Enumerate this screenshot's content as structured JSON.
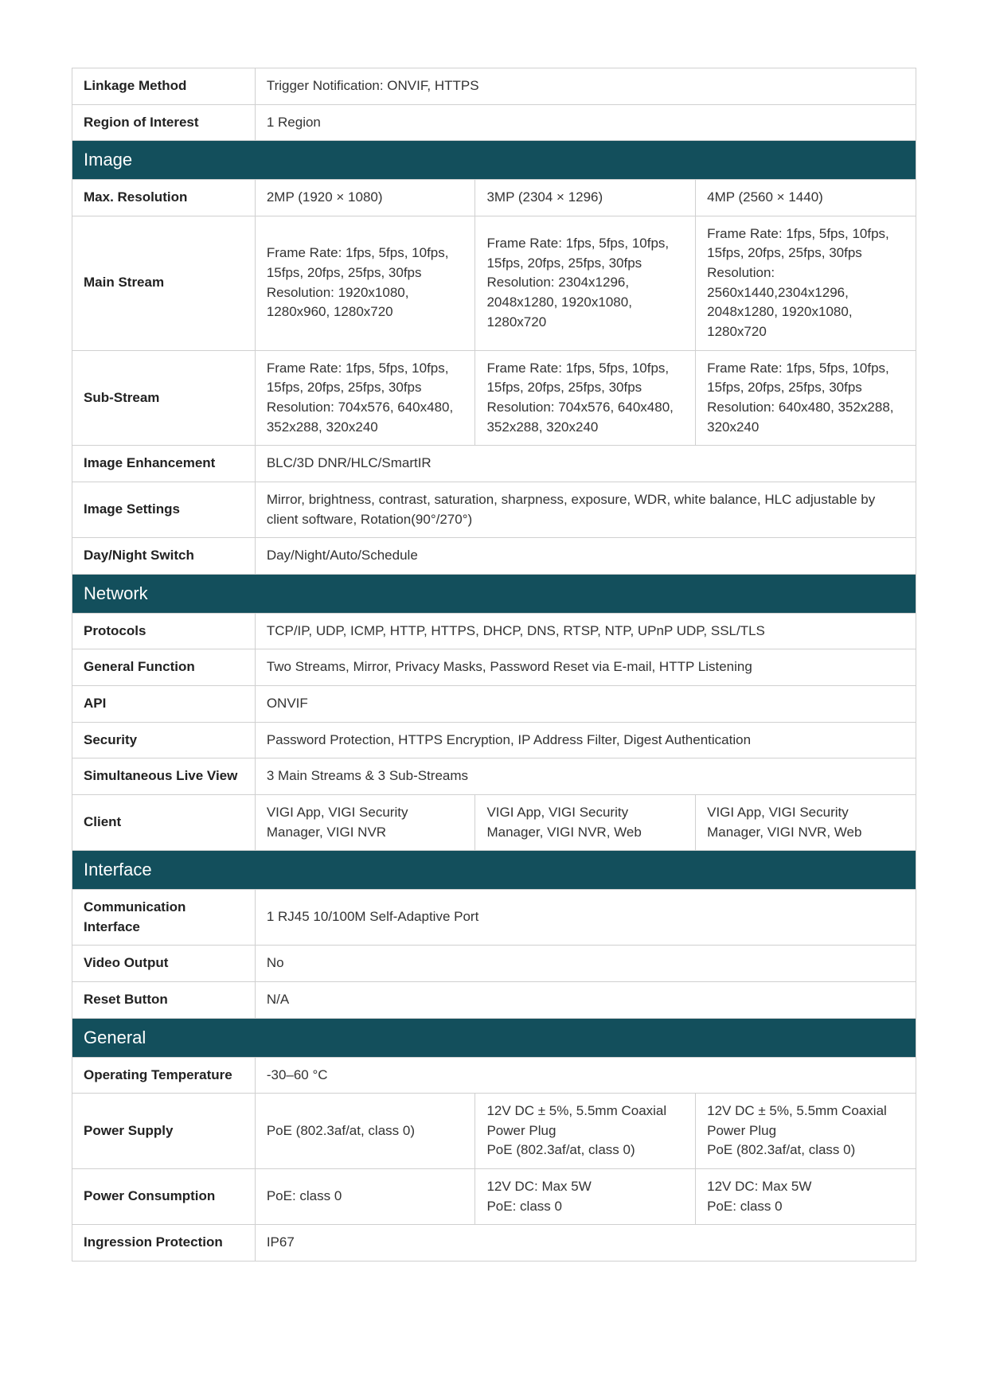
{
  "rows": [
    {
      "type": "row1",
      "label": "Linkage Method",
      "value": "Trigger Notification: ONVIF, HTTPS"
    },
    {
      "type": "row1",
      "label": "Region of Interest",
      "value": "1 Region"
    },
    {
      "type": "section",
      "title": "Image"
    },
    {
      "type": "row3",
      "label": "Max. Resolution",
      "v1": "2MP (1920 × 1080)",
      "v2": "3MP (2304 × 1296)",
      "v3": "4MP (2560 × 1440)"
    },
    {
      "type": "row3",
      "label": "Main Stream",
      "v1": "Frame Rate: 1fps, 5fps, 10fps, 15fps, 20fps, 25fps, 30fps\nResolution: 1920x1080, 1280x960, 1280x720",
      "v2": "Frame Rate: 1fps, 5fps, 10fps, 15fps, 20fps, 25fps, 30fps\nResolution: 2304x1296, 2048x1280, 1920x1080, 1280x720",
      "v3": "Frame Rate: 1fps, 5fps, 10fps, 15fps, 20fps, 25fps, 30fps\nResolution: 2560x1440,2304x1296, 2048x1280, 1920x1080, 1280x720"
    },
    {
      "type": "row3",
      "label": "Sub-Stream",
      "v1": "Frame Rate: 1fps, 5fps, 10fps, 15fps, 20fps, 25fps, 30fps\nResolution: 704x576, 640x480, 352x288, 320x240",
      "v2": "Frame Rate: 1fps, 5fps, 10fps, 15fps, 20fps, 25fps, 30fps\nResolution: 704x576, 640x480, 352x288, 320x240",
      "v3": "Frame Rate: 1fps, 5fps, 10fps, 15fps, 20fps, 25fps, 30fps\nResolution: 640x480, 352x288, 320x240"
    },
    {
      "type": "row1",
      "label": "Image Enhancement",
      "value": "BLC/3D DNR/HLC/SmartIR"
    },
    {
      "type": "row1",
      "label": "Image Settings",
      "value": "Mirror, brightness, contrast, saturation, sharpness, exposure, WDR, white balance, HLC adjustable by client software, Rotation(90°/270°)"
    },
    {
      "type": "row1",
      "label": "Day/Night Switch",
      "value": "Day/Night/Auto/Schedule"
    },
    {
      "type": "section",
      "title": "Network"
    },
    {
      "type": "row1",
      "label": "Protocols",
      "value": "TCP/IP, UDP, ICMP, HTTP, HTTPS, DHCP, DNS, RTSP, NTP, UPnP UDP, SSL/TLS"
    },
    {
      "type": "row1",
      "label": "General Function",
      "value": "Two Streams, Mirror, Privacy Masks, Password Reset via E-mail, HTTP Listening"
    },
    {
      "type": "row1",
      "label": "API",
      "value": "ONVIF"
    },
    {
      "type": "row1",
      "label": "Security",
      "value": "Password Protection,  HTTPS Encryption, IP Address Filter, Digest Authentication"
    },
    {
      "type": "row1",
      "label": "Simultaneous Live View",
      "value": "3 Main Streams & 3 Sub-Streams"
    },
    {
      "type": "row3",
      "label": "Client",
      "v1": "VIGI App, VIGI Security Manager, VIGI NVR",
      "v2": "VIGI App, VIGI Security Manager, VIGI NVR, Web",
      "v3": "VIGI App, VIGI Security Manager, VIGI NVR, Web"
    },
    {
      "type": "section",
      "title": "Interface"
    },
    {
      "type": "row1",
      "label": "Communication Interface",
      "value": "1 RJ45 10/100M Self-Adaptive Port"
    },
    {
      "type": "row1",
      "label": "Video Output",
      "value": "No"
    },
    {
      "type": "row1",
      "label": "Reset Button",
      "value": "N/A"
    },
    {
      "type": "section",
      "title": "General"
    },
    {
      "type": "row1",
      "label": "Operating Temperature",
      "value": "-30–60 °C"
    },
    {
      "type": "row3",
      "label": "Power Supply",
      "v1": "PoE (802.3af/at, class 0)",
      "v2": "12V DC ± 5%, 5.5mm Coaxial Power Plug\nPoE (802.3af/at, class 0)",
      "v3": "12V DC ± 5%, 5.5mm Coaxial Power Plug\nPoE (802.3af/at, class 0)"
    },
    {
      "type": "row3",
      "label": "Power Consumption",
      "v1": "PoE: class 0",
      "v2": "12V DC: Max  5W\nPoE: class 0",
      "v3": "12V DC: Max  5W\nPoE: class 0"
    },
    {
      "type": "row1",
      "label": "Ingression Protection",
      "value": "IP67"
    }
  ],
  "colors": {
    "section_bg": "#134f5c",
    "section_text": "#ffffff",
    "border": "#d0d0d0"
  }
}
